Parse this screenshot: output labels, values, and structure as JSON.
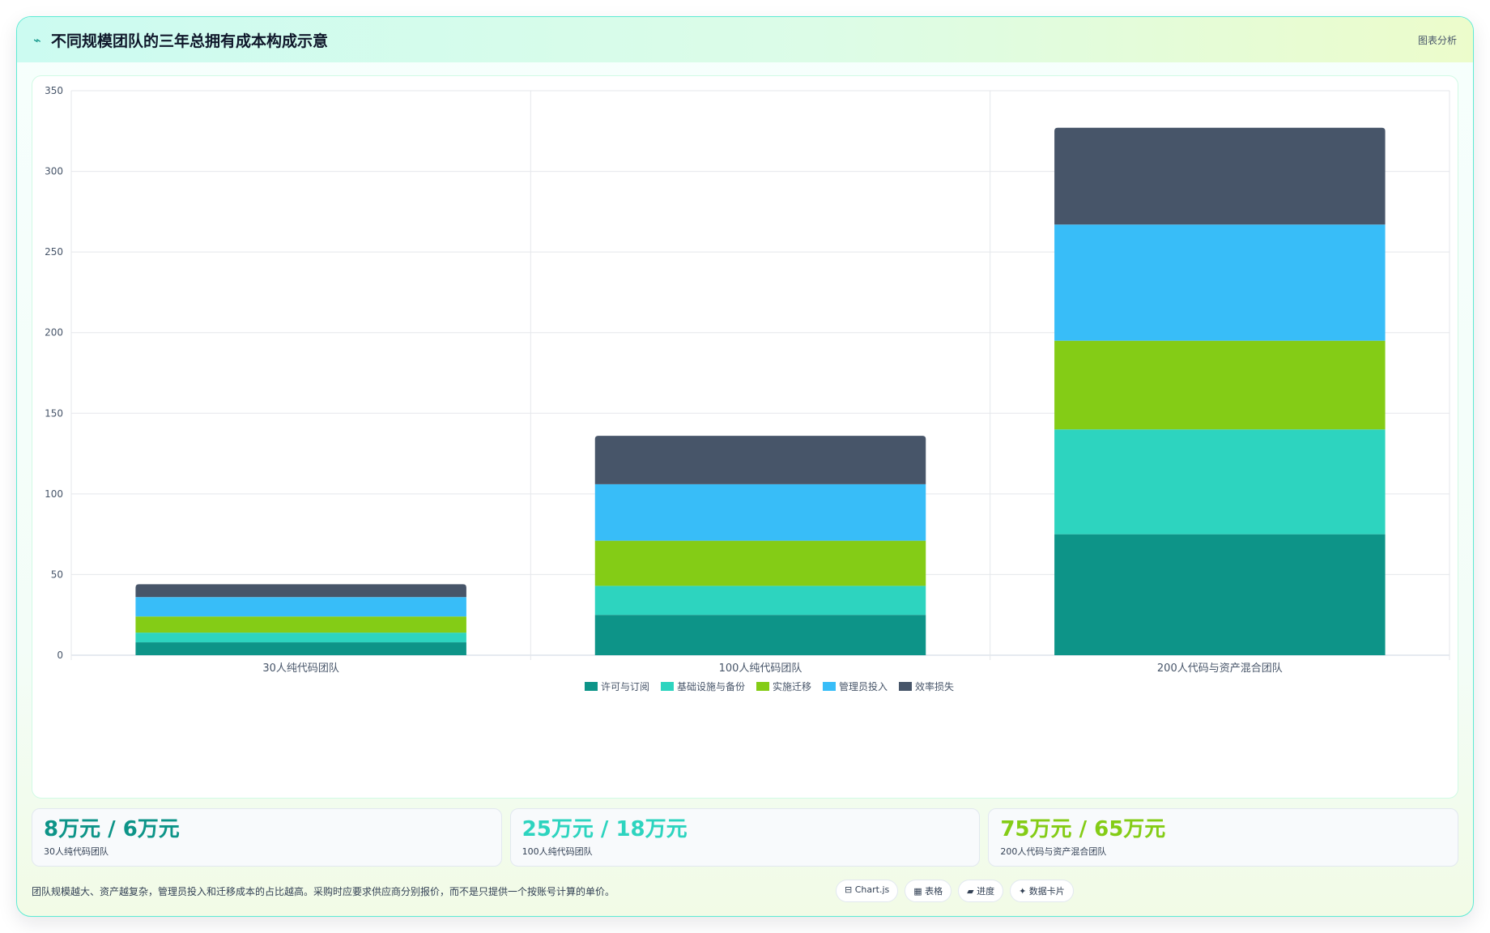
{
  "header": {
    "title": "不同规模团队的三年总拥有成本构成示意",
    "tag": "图表分析",
    "icon": "line-chart-icon"
  },
  "chart_data": {
    "type": "bar",
    "stacked": true,
    "categories": [
      "30人纯代码团队",
      "100人纯代码团队",
      "200人代码与资产混合团队"
    ],
    "series": [
      {
        "name": "许可与订阅",
        "color": "#0d9488",
        "values": [
          8,
          25,
          75
        ]
      },
      {
        "name": "基础设施与备份",
        "color": "#2dd4bf",
        "values": [
          6,
          18,
          65
        ]
      },
      {
        "name": "实施迁移",
        "color": "#84cc16",
        "values": [
          10,
          28,
          55
        ]
      },
      {
        "name": "管理员投入",
        "color": "#38bdf8",
        "values": [
          12,
          35,
          72
        ]
      },
      {
        "name": "效率损失",
        "color": "#475569",
        "values": [
          8,
          30,
          60
        ]
      }
    ],
    "ylim": [
      0,
      350
    ],
    "yticks": [
      0,
      50,
      100,
      150,
      200,
      250,
      300,
      350
    ],
    "grid": true,
    "legend": "bottom"
  },
  "stats": [
    {
      "value": "8万元 / 6万元",
      "label": "30人纯代码团队",
      "color": "#0d9488"
    },
    {
      "value": "25万元 / 18万元",
      "label": "100人纯代码团队",
      "color": "#2dd4bf"
    },
    {
      "value": "75万元 / 65万元",
      "label": "200人代码与资产混合团队",
      "color": "#84cc16"
    }
  ],
  "footer": {
    "note": "团队规模越大、资产越复杂，管理员投入和迁移成本的占比越高。采购时应要求供应商分别报价，而不是只提供一个按账号计算的单价。",
    "chips": [
      "⊟ Chart.js",
      "▦ 表格",
      "▰ 进度",
      "✦ 数据卡片"
    ]
  }
}
